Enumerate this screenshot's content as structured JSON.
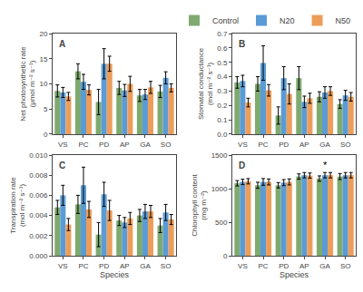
{
  "chart_data": [
    {
      "type": "bar",
      "title": "A",
      "ylabel": "Net photosynthetic rate (μmol m⁻² s⁻¹)",
      "categories": [
        "VS",
        "PC",
        "PD",
        "AP",
        "GA",
        "SO"
      ],
      "series": [
        {
          "name": "Control",
          "color": "#7faa6f",
          "values": [
            8.6,
            12.5,
            6.4,
            9.2,
            7.7,
            8.5
          ],
          "errors": [
            1.2,
            1.5,
            2.5,
            1.3,
            1.2,
            1.2
          ]
        },
        {
          "name": "N20",
          "color": "#5b9bd5",
          "values": [
            8.3,
            10.4,
            14.0,
            8.7,
            7.9,
            11.2
          ],
          "errors": [
            1.0,
            1.5,
            3.0,
            1.2,
            1.0,
            1.2
          ]
        },
        {
          "name": "N50",
          "color": "#ed9d5a",
          "values": [
            7.5,
            8.8,
            14.0,
            10.0,
            9.3,
            9.2
          ],
          "errors": [
            0.8,
            1.0,
            1.5,
            1.5,
            1.2,
            0.8
          ]
        }
      ],
      "ylim": [
        0,
        20
      ],
      "yticks": [
        0,
        5,
        10,
        15,
        20
      ],
      "grid": false
    },
    {
      "type": "bar",
      "title": "B",
      "ylabel": "Stomatal conductance (mol m⁻² s⁻¹)",
      "categories": [
        "VS",
        "PC",
        "PD",
        "AP",
        "GA",
        "SO"
      ],
      "series": [
        {
          "name": "Control",
          "color": "#7faa6f",
          "values": [
            0.36,
            0.35,
            0.13,
            0.39,
            0.26,
            0.21
          ],
          "errors": [
            0.04,
            0.05,
            0.06,
            0.08,
            0.035,
            0.03
          ]
        },
        {
          "name": "N20",
          "color": "#5b9bd5",
          "values": [
            0.37,
            0.495,
            0.39,
            0.225,
            0.29,
            0.27
          ],
          "errors": [
            0.04,
            0.12,
            0.08,
            0.04,
            0.04,
            0.035
          ]
        },
        {
          "name": "N50",
          "color": "#ed9d5a",
          "values": [
            0.22,
            0.305,
            0.28,
            0.25,
            0.3,
            0.26
          ],
          "errors": [
            0.03,
            0.04,
            0.07,
            0.035,
            0.03,
            0.03
          ]
        }
      ],
      "ylim": [
        0.0,
        0.7
      ],
      "yticks": [
        {
          "value": 0,
          "label": "0.0"
        },
        0.1,
        0.2,
        0.3,
        0.4,
        0.5,
        0.6,
        0.7
      ],
      "grid": false,
      "legend": "upper right"
    },
    {
      "type": "bar",
      "title": "C",
      "ylabel": "Transpiration rate (mol m⁻² s⁻¹)",
      "xlabel": "Species",
      "categories": [
        "VS",
        "PC",
        "PD",
        "AP",
        "GA",
        "SO"
      ],
      "series": [
        {
          "name": "Control",
          "color": "#7faa6f",
          "values": [
            0.0048,
            0.0051,
            0.0021,
            0.0035,
            0.004,
            0.003
          ],
          "errors": [
            0.0007,
            0.0009,
            0.0012,
            0.0005,
            0.0006,
            0.0007
          ]
        },
        {
          "name": "N20",
          "color": "#5b9bd5",
          "values": [
            0.006,
            0.007,
            0.0061,
            0.0033,
            0.0044,
            0.0043
          ],
          "errors": [
            0.001,
            0.0018,
            0.0012,
            0.0005,
            0.0007,
            0.0008
          ]
        },
        {
          "name": "N50",
          "color": "#ed9d5a",
          "values": [
            0.0031,
            0.0046,
            0.0045,
            0.0037,
            0.0044,
            0.0036
          ],
          "errors": [
            0.0006,
            0.0008,
            0.001,
            0.0006,
            0.0006,
            0.0005
          ]
        }
      ],
      "ylim": [
        0.0,
        0.01
      ],
      "yticks": [
        {
          "value": 0,
          "label": "0.000"
        },
        {
          "value": 0.002,
          "label": "0.002"
        },
        {
          "value": 0.004,
          "label": "0.004"
        },
        {
          "value": 0.006,
          "label": "0.006"
        },
        {
          "value": 0.008,
          "label": "0.008"
        },
        {
          "value": 0.01,
          "label": "0.010"
        }
      ],
      "grid": false
    },
    {
      "type": "bar",
      "title": "D",
      "ylabel": "Chlorophyll content (mg m⁻²)",
      "xlabel": "Species",
      "categories": [
        "VS",
        "PC",
        "PD",
        "AP",
        "GA",
        "SO"
      ],
      "series": [
        {
          "name": "Control",
          "color": "#7faa6f",
          "values": [
            1080,
            1050,
            1050,
            1180,
            1150,
            1180
          ],
          "errors": [
            40,
            45,
            40,
            40,
            40,
            45
          ]
        },
        {
          "name": "N20",
          "color": "#5b9bd5",
          "values": [
            1100,
            1100,
            1090,
            1200,
            1200,
            1200
          ],
          "errors": [
            40,
            50,
            45,
            40,
            40,
            40
          ]
        },
        {
          "name": "N50",
          "color": "#ed9d5a",
          "values": [
            1110,
            1100,
            1100,
            1195,
            1200,
            1200
          ],
          "errors": [
            40,
            45,
            45,
            38,
            40,
            40
          ]
        }
      ],
      "ylim": [
        0,
        1500
      ],
      "yticks": [
        0,
        500,
        1000,
        1500
      ],
      "grid": false,
      "annotations": [
        {
          "text": "*",
          "category": "GA",
          "series": "N20"
        }
      ]
    }
  ]
}
